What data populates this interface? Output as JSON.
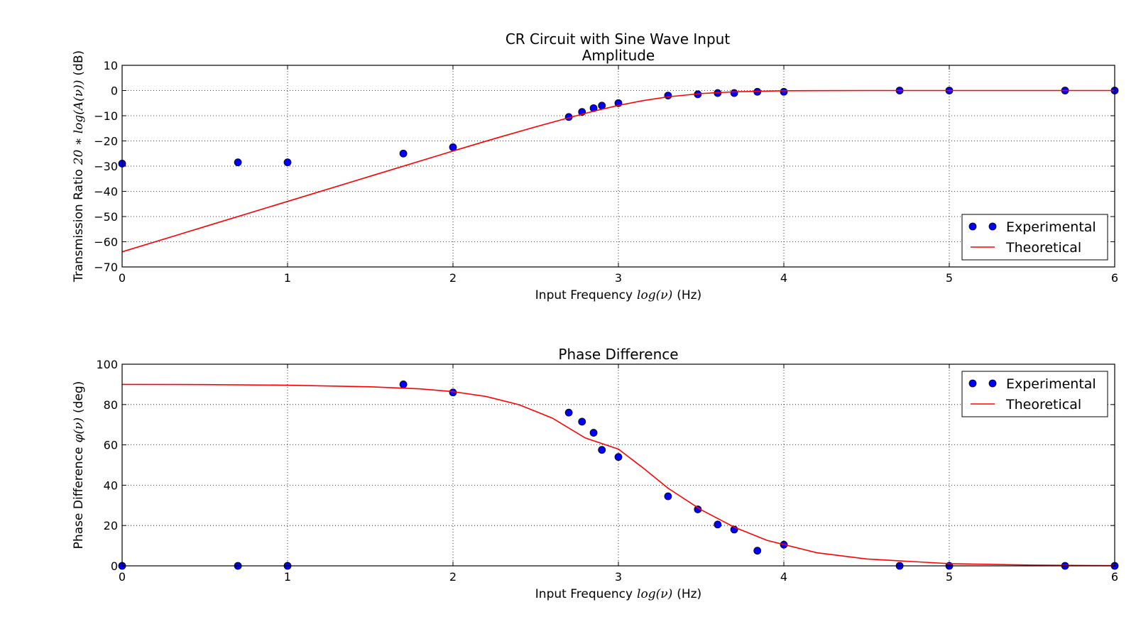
{
  "figure": {
    "suptitle": "CR Circuit with Sine Wave Input"
  },
  "chart_data": [
    {
      "type": "scatter",
      "title": "Amplitude",
      "xlabel": "Input Frequency",
      "xlabel_math": "log(ν)",
      "xlabel_unit": "(Hz)",
      "ylabel": "Transmission Ratio",
      "ylabel_math": "20 ∗ log(A(ν))",
      "ylabel_unit": "(dB)",
      "xlim": [
        0,
        6
      ],
      "ylim": [
        -70,
        10
      ],
      "xticks": [
        0,
        1,
        2,
        3,
        4,
        5,
        6
      ],
      "yticks": [
        10,
        0,
        -10,
        -20,
        -30,
        -40,
        -50,
        -60,
        -70
      ],
      "grid": true,
      "legend_position": "lower-right",
      "series": [
        {
          "name": "Experimental",
          "kind": "markers",
          "color": "#0000ff",
          "x": [
            0,
            0.7,
            1.0,
            1.7,
            2.0,
            2.7,
            2.78,
            2.85,
            2.9,
            3.0,
            3.3,
            3.48,
            3.6,
            3.7,
            3.84,
            4.0,
            4.7,
            5.0,
            5.7,
            6.0
          ],
          "y": [
            -29,
            -28.5,
            -28.5,
            -25,
            -22.5,
            -10.5,
            -8.5,
            -7,
            -6,
            -5,
            -2,
            -1.5,
            -1,
            -1,
            -0.5,
            -0.5,
            0,
            0,
            0,
            0
          ]
        },
        {
          "name": "Theoretical",
          "kind": "line",
          "color": "#ff0000",
          "x": [
            0,
            0.5,
            1.0,
            1.5,
            2.0,
            2.25,
            2.5,
            2.7,
            2.85,
            3.0,
            3.15,
            3.3,
            3.5,
            3.7,
            4.0,
            4.5,
            5.0,
            5.5,
            6.0
          ],
          "y": [
            -64,
            -54,
            -44,
            -34,
            -24,
            -19.1,
            -14.4,
            -10.8,
            -8.2,
            -5.9,
            -4.0,
            -2.5,
            -1.2,
            -0.5,
            -0.1,
            0,
            0,
            0,
            0
          ]
        }
      ]
    },
    {
      "type": "scatter",
      "title": "Phase Difference",
      "xlabel": "Input Frequency",
      "xlabel_math": "log(ν)",
      "xlabel_unit": "(Hz)",
      "ylabel": "Phase Difference",
      "ylabel_math": "φ(ν)",
      "ylabel_unit": "(deg)",
      "xlim": [
        0,
        6
      ],
      "ylim": [
        0,
        100
      ],
      "xticks": [
        0,
        1,
        2,
        3,
        4,
        5,
        6
      ],
      "yticks": [
        100,
        80,
        60,
        40,
        20,
        0
      ],
      "grid": true,
      "legend_position": "upper-right",
      "series": [
        {
          "name": "Experimental",
          "kind": "markers",
          "color": "#0000ff",
          "x": [
            0,
            0.7,
            1.0,
            1.7,
            2.0,
            2.7,
            2.78,
            2.85,
            2.9,
            3.0,
            3.3,
            3.48,
            3.6,
            3.7,
            3.84,
            4.0,
            4.7,
            5.0,
            5.7,
            6.0
          ],
          "y": [
            0,
            0,
            0,
            90,
            86,
            76,
            71.5,
            66,
            57.5,
            54,
            34.5,
            28,
            20.5,
            18,
            7.5,
            10.5,
            0,
            0,
            0,
            0
          ]
        },
        {
          "name": "Theoretical",
          "kind": "line",
          "color": "#ff0000",
          "x": [
            0,
            0.5,
            1.0,
            1.5,
            1.8,
            2.0,
            2.2,
            2.4,
            2.6,
            2.8,
            3.0,
            3.15,
            3.3,
            3.5,
            3.7,
            3.9,
            4.2,
            4.5,
            5.0,
            5.5,
            6.0
          ],
          "y": [
            90,
            89.9,
            89.6,
            88.8,
            87.8,
            86.4,
            84.0,
            79.9,
            73.3,
            63.4,
            57.9,
            48.5,
            38.5,
            27.8,
            19.2,
            12.6,
            6.5,
            3.4,
            1.1,
            0.4,
            0.1
          ]
        }
      ]
    }
  ]
}
